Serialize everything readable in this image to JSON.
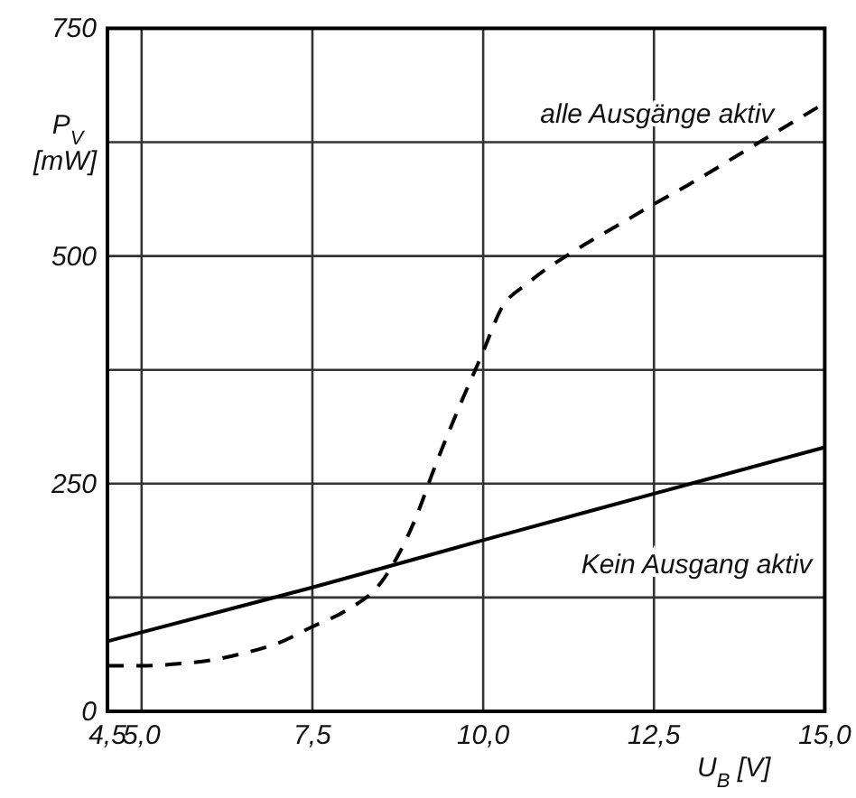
{
  "chart_data": {
    "type": "line",
    "xlabel": "U$_{B}$ [V]",
    "ylabel": "P$_{V}$ [mW]",
    "xlim": [
      4.5,
      15
    ],
    "xticks": [
      {
        "value": 4.5,
        "label": "4,5"
      },
      {
        "value": 5,
        "label": "5,0"
      },
      {
        "value": 7.5,
        "label": "7,5"
      },
      {
        "value": 10,
        "label": "10,0"
      },
      {
        "value": 12.5,
        "label": "12,5"
      },
      {
        "value": 15,
        "label": "15,0"
      }
    ],
    "ylim": [
      0,
      750
    ],
    "yticks": [
      0,
      {
        "value": 125,
        "label": null
      },
      250,
      {
        "value": 375,
        "label": null
      },
      500,
      {
        "value": 625,
        "label": null
      },
      750
    ],
    "grid": true,
    "legend": false,
    "marker": "none",
    "series": [
      {
        "name": "alle Ausgänge aktiv",
        "color": "#000000",
        "line_style": "dashed",
        "x": [
          4.5,
          5,
          5.5,
          6,
          6.5,
          7,
          7.5,
          8,
          8.5,
          9,
          9.3,
          9.67,
          10,
          10.25,
          10.67,
          11.3,
          12,
          12.5,
          13,
          14,
          15
        ],
        "values": [
          50,
          50,
          52,
          56,
          64,
          75,
          93,
          111,
          141,
          210,
          270,
          338,
          395,
          440,
          471,
          504,
          535,
          557,
          578,
          623,
          668
        ]
      },
      {
        "name": "Kein Ausgang aktiv",
        "color": "#000000",
        "line_style": "solid",
        "x": [
          4.5,
          7.5,
          10,
          12.5,
          15
        ],
        "values": [
          77,
          136,
          188,
          239,
          290
        ]
      }
    ]
  }
}
